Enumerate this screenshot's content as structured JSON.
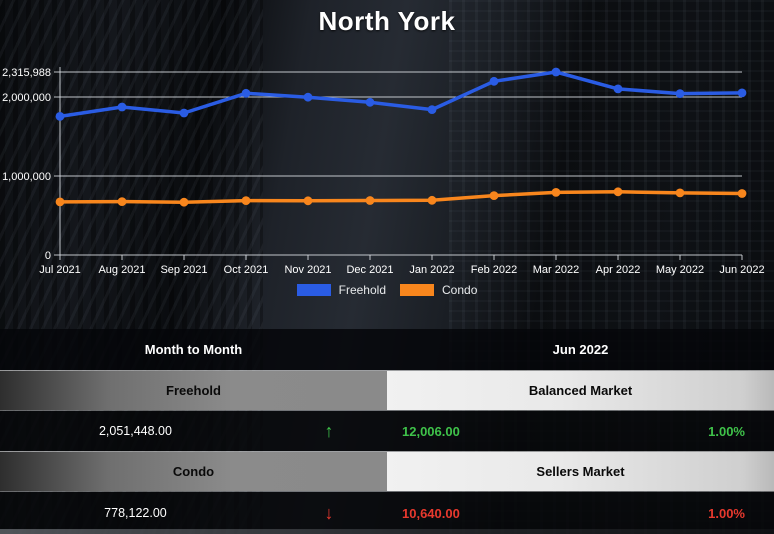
{
  "title": "North York",
  "colors": {
    "freehold_blue": "#2a5ce4",
    "condo_orange": "#f8861d",
    "green": "#3fc24a",
    "red": "#e8392e",
    "grid": "#dfe3e8"
  },
  "chart_data": {
    "type": "line",
    "x": [
      "Jul 2021",
      "Aug 2021",
      "Sep 2021",
      "Oct 2021",
      "Nov 2021",
      "Dec 2021",
      "Jan 2022",
      "Feb 2022",
      "Mar 2022",
      "Apr 2022",
      "May 2022",
      "Jun 2022"
    ],
    "series": [
      {
        "name": "Freehold",
        "color": "#2a5ce4",
        "values": [
          1755000,
          1873000,
          1798000,
          2047000,
          1997000,
          1933000,
          1840000,
          2199000,
          2315988,
          2102000,
          2043000,
          2051448
        ]
      },
      {
        "name": "Condo",
        "color": "#f8861d",
        "values": [
          672000,
          676000,
          668000,
          688000,
          686000,
          690000,
          692000,
          752000,
          793000,
          800000,
          786000,
          778122
        ]
      }
    ],
    "yticks": [
      {
        "label": "0",
        "value": 0
      },
      {
        "label": "1,000,000",
        "value": 1000000
      },
      {
        "label": "2,000,000",
        "value": 2000000
      },
      {
        "label": "2,315,988",
        "value": 2315988
      }
    ],
    "ylim": [
      0,
      2315988
    ],
    "grid": true,
    "legend_position": "bottom"
  },
  "legend": [
    {
      "label": "Freehold",
      "color": "#2a5ce4"
    },
    {
      "label": "Condo",
      "color": "#f8861d"
    }
  ],
  "table": {
    "header": {
      "left": "Month to Month",
      "right": "Jun 2022"
    },
    "freehold": {
      "label": "Freehold",
      "market": "Balanced Market",
      "value": "2,051,448.00",
      "arrow": "↑",
      "trend": "up",
      "sold": "12,006.00",
      "pct": "1.00%"
    },
    "condo": {
      "label": "Condo",
      "market": "Sellers Market",
      "value": "778,122.00",
      "arrow": "↓",
      "trend": "down",
      "sold": "10,640.00",
      "pct": "1.00%"
    }
  }
}
